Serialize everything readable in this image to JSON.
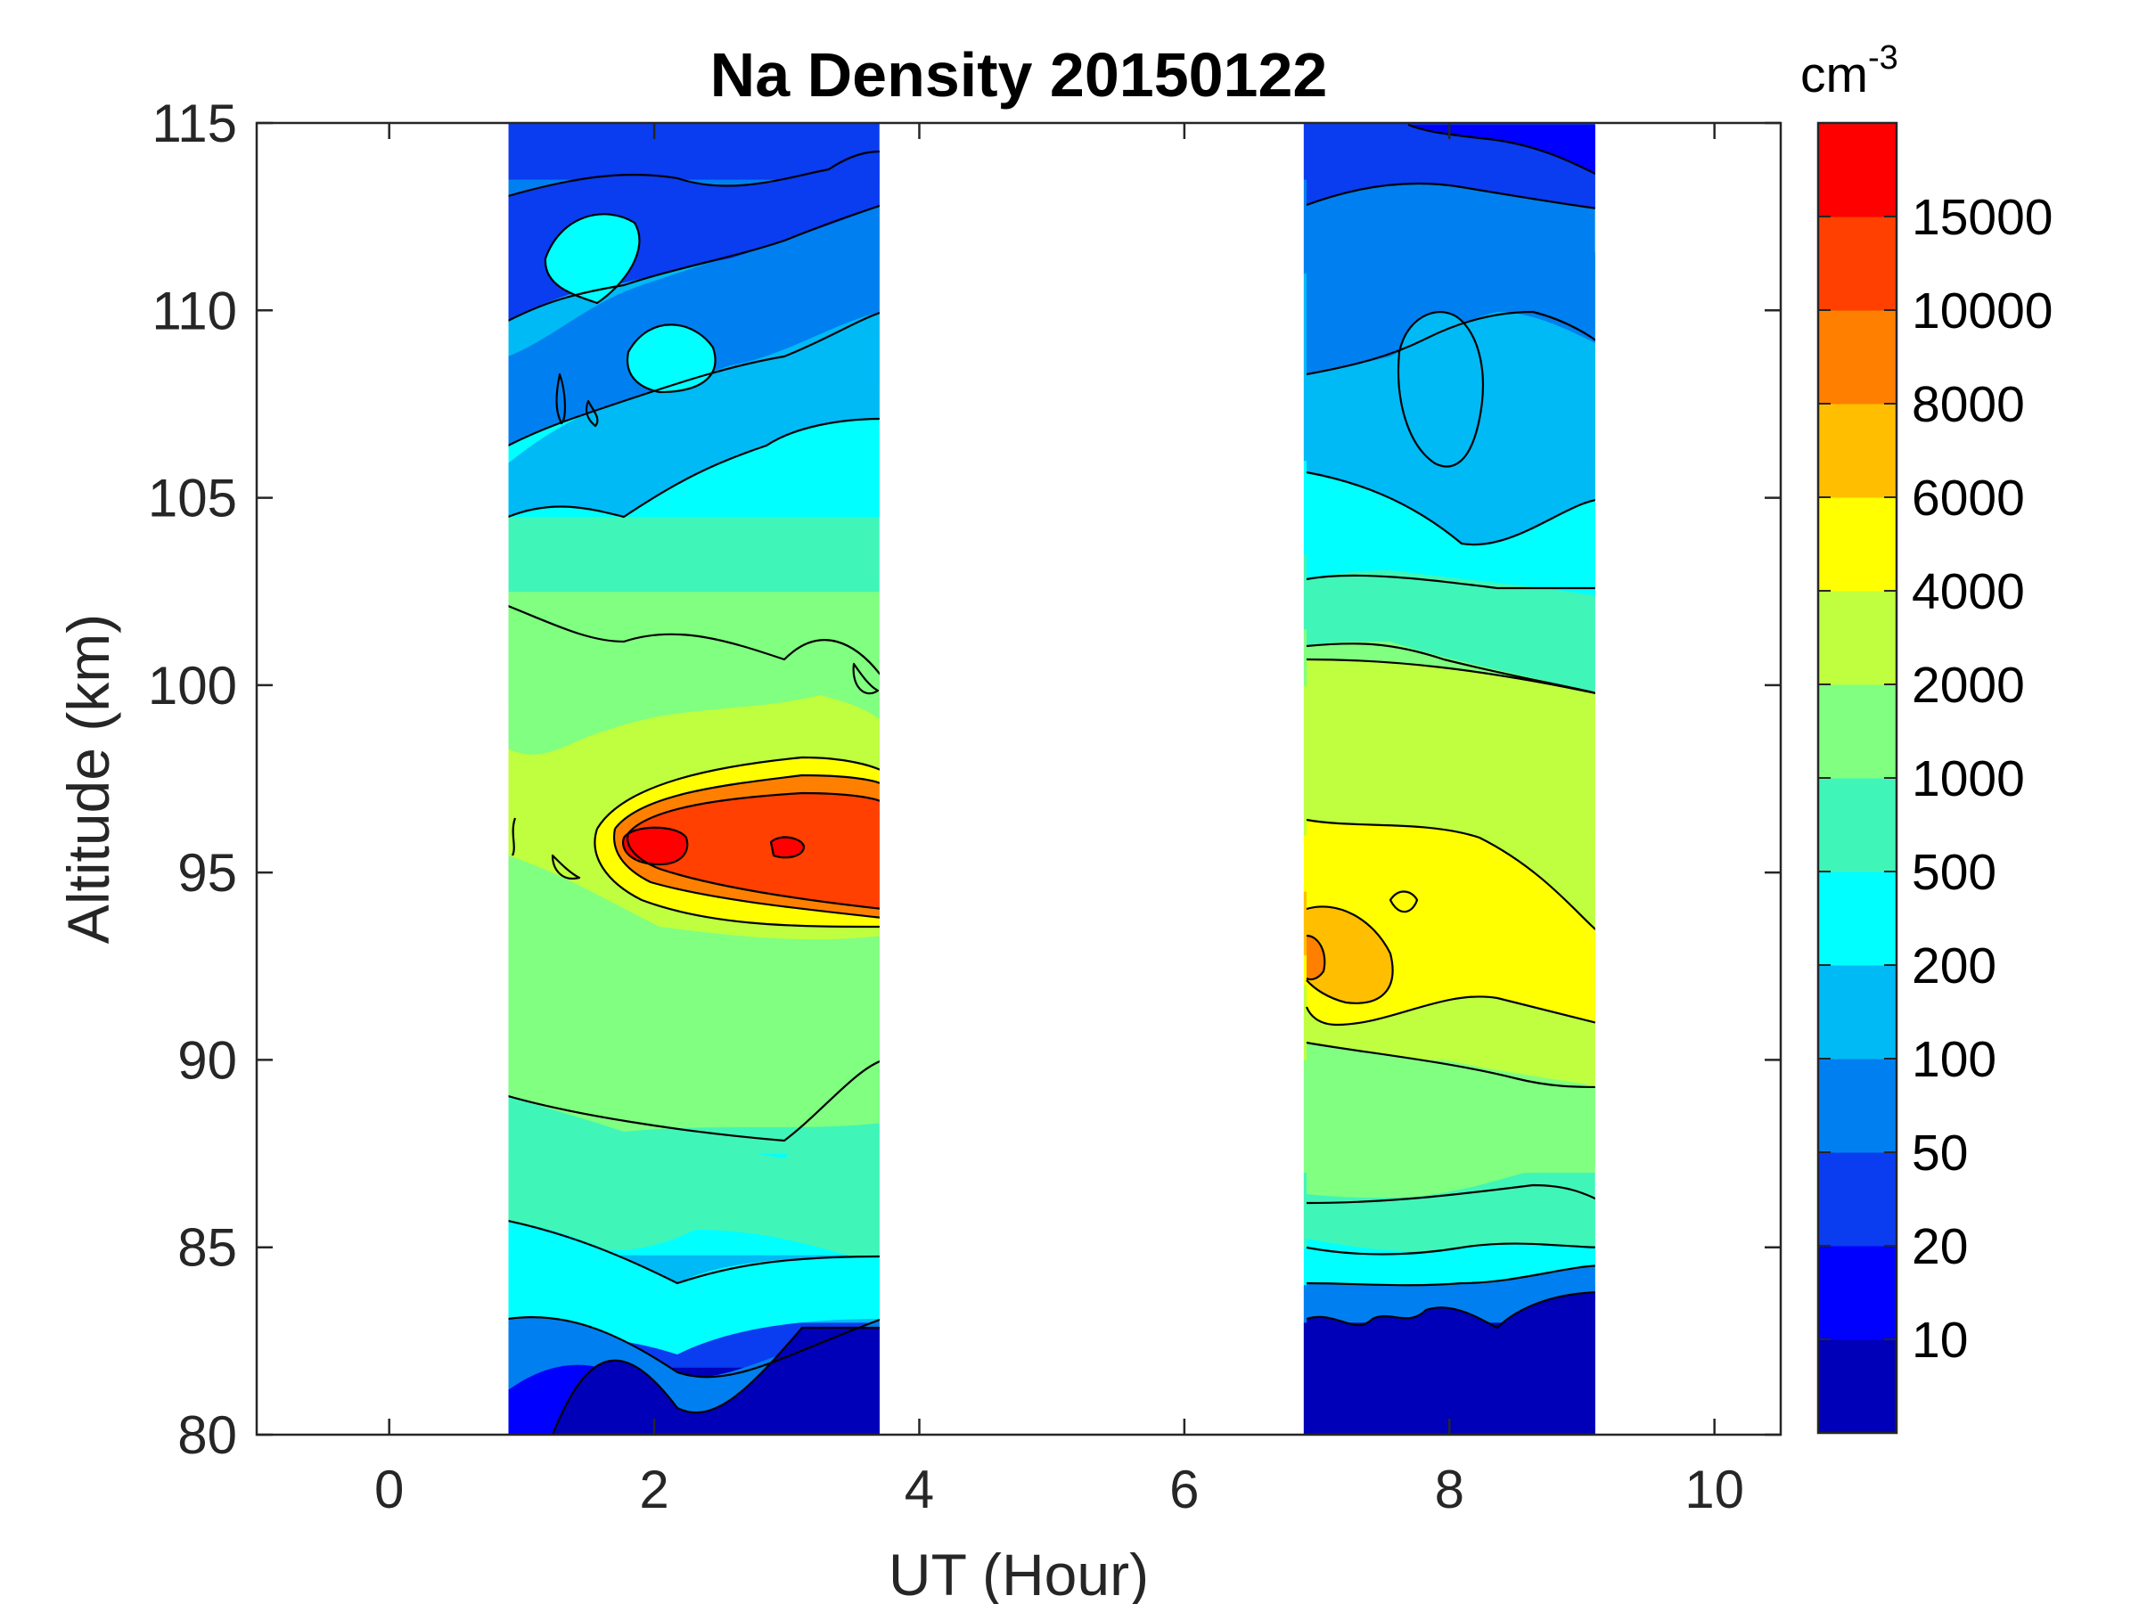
{
  "chart_data": {
    "type": "heatmap",
    "subtype": "filled-contour",
    "title": "Na Density 20150122",
    "xlabel": "UT (Hour)",
    "ylabel": "Altitude (km)",
    "xlim": [
      -1,
      10.5
    ],
    "ylim": [
      80,
      115
    ],
    "xticks": [
      0,
      2,
      4,
      6,
      8,
      10
    ],
    "yticks": [
      80,
      85,
      90,
      95,
      100,
      105,
      110,
      115
    ],
    "colorbar": {
      "unit_base": "cm",
      "unit_exp": "-3",
      "levels": [
        10,
        20,
        50,
        100,
        200,
        500,
        1000,
        2000,
        4000,
        6000,
        8000,
        10000,
        15000
      ],
      "labels": [
        "10",
        "20",
        "50",
        "100",
        "200",
        "500",
        "1000",
        "2000",
        "4000",
        "6000",
        "8000",
        "10000",
        "15000"
      ],
      "colors": [
        "#0000B8",
        "#0000FF",
        "#0A3CF0",
        "#0080F0",
        "#00BAF5",
        "#00FFFF",
        "#40F5B8",
        "#80FF80",
        "#BFFF40",
        "#FFFF00",
        "#FFBF00",
        "#FF8000",
        "#FF4000",
        "#FF0000"
      ]
    },
    "data_blocks": [
      {
        "name": "block-1",
        "x_range": [
          0.9,
          3.7
        ],
        "profile": [
          {
            "alt": 80.0,
            "band": 0
          },
          {
            "alt": 81.8,
            "band": 2
          },
          {
            "alt": 83.0,
            "band": 4
          },
          {
            "alt": 84.8,
            "band": 5
          },
          {
            "alt": 87.5,
            "band": 6
          },
          {
            "alt": 90.5,
            "band": 7
          },
          {
            "alt": 93.5,
            "band": 8
          },
          {
            "alt": 94.5,
            "band": 10
          },
          {
            "alt": 95.2,
            "band": 12
          },
          {
            "alt": 96.3,
            "band": 10
          },
          {
            "alt": 97.0,
            "band": 8
          },
          {
            "alt": 99.5,
            "band": 7
          },
          {
            "alt": 102.5,
            "band": 6
          },
          {
            "alt": 104.5,
            "band": 5
          },
          {
            "alt": 108.0,
            "band": 4
          },
          {
            "alt": 111.5,
            "band": 3
          },
          {
            "alt": 113.5,
            "band": 2
          },
          {
            "alt": 115.0,
            "band": 2
          }
        ]
      },
      {
        "name": "block-2",
        "x_range": [
          6.9,
          9.1
        ],
        "profile": [
          {
            "alt": 80.0,
            "band": 0
          },
          {
            "alt": 83.0,
            "band": 3
          },
          {
            "alt": 84.0,
            "band": 5
          },
          {
            "alt": 85.0,
            "band": 6
          },
          {
            "alt": 87.0,
            "band": 7
          },
          {
            "alt": 90.0,
            "band": 8
          },
          {
            "alt": 92.0,
            "band": 9
          },
          {
            "alt": 92.8,
            "band": 10
          },
          {
            "alt": 94.5,
            "band": 9
          },
          {
            "alt": 96.0,
            "band": 8
          },
          {
            "alt": 100.0,
            "band": 7
          },
          {
            "alt": 101.5,
            "band": 6
          },
          {
            "alt": 103.5,
            "band": 5
          },
          {
            "alt": 106.0,
            "band": 4
          },
          {
            "alt": 111.0,
            "band": 3
          },
          {
            "alt": 113.5,
            "band": 2
          },
          {
            "alt": 115.0,
            "band": 2
          }
        ]
      }
    ]
  }
}
